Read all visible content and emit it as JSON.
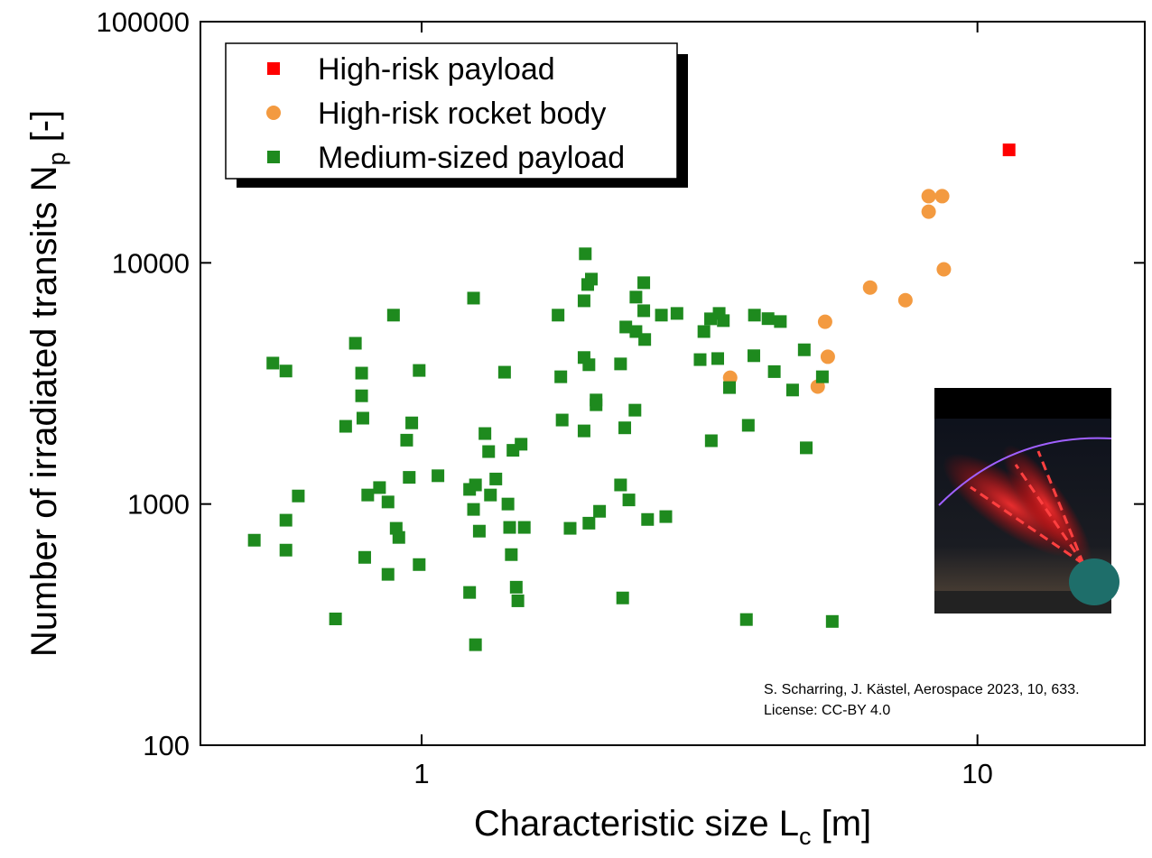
{
  "chart_data": {
    "type": "scatter",
    "xlabel": {
      "text": "Characteristic size L",
      "sub": "c",
      "suffix": "[m]"
    },
    "ylabel": {
      "text": "Number of irradiated transits N",
      "sub": "p",
      "suffix": "[-]"
    },
    "xscale": "log",
    "yscale": "log",
    "xlim": [
      0.4,
      20
    ],
    "ylim": [
      100,
      100000
    ],
    "xticks": [
      1,
      10
    ],
    "yticks": [
      100,
      1000,
      10000,
      100000
    ],
    "legend": "top-left",
    "annotations": [
      "S. Scharring, J. Kästel, Aerospace 2023, 10, 633.",
      "License: CC-BY 4.0"
    ],
    "series": [
      {
        "name": "High-risk payload",
        "color": "#ff0000",
        "marker": "square",
        "x": [
          11.4
        ],
        "values": [
          29400
        ]
      },
      {
        "name": "High-risk rocket body",
        "color": "#f39a40",
        "marker": "circle",
        "x": [
          8.17,
          8.64,
          8.17,
          8.7,
          6.41,
          7.42,
          5.32,
          5.38,
          3.59,
          5.16
        ],
        "values": [
          18900,
          18900,
          16300,
          9400,
          7900,
          7000,
          5700,
          4080,
          3340,
          3070
        ]
      },
      {
        "name": "Medium-sized payload",
        "color": "#1e8a1e",
        "marker": "square",
        "x": [
          0.5,
          0.54,
          0.57,
          0.57,
          0.57,
          0.6,
          0.7,
          0.73,
          0.76,
          0.78,
          0.78,
          0.784,
          0.79,
          0.8,
          0.84,
          0.87,
          0.87,
          0.89,
          0.9,
          0.91,
          0.94,
          0.96,
          0.95,
          0.99,
          0.99,
          1.07,
          1.22,
          1.24,
          1.22,
          1.25,
          1.24,
          1.25,
          1.27,
          1.3,
          1.32,
          1.33,
          1.36,
          1.41,
          1.43,
          1.44,
          1.45,
          1.46,
          1.48,
          1.49,
          1.51,
          1.53,
          1.76,
          1.78,
          1.79,
          1.85,
          1.97,
          1.96,
          1.99,
          2.02,
          1.96,
          2.0,
          1.96,
          2.0,
          2.06,
          2.06,
          2.09,
          2.28,
          2.28,
          2.32,
          2.3,
          2.33,
          2.36,
          2.43,
          2.42,
          2.43,
          2.51,
          2.51,
          2.52,
          2.55,
          2.7,
          2.75,
          2.88,
          3.17,
          3.22,
          3.32,
          3.31,
          3.41,
          3.43,
          3.49,
          3.58,
          3.84,
          3.87,
          3.96,
          3.97,
          4.2,
          4.31,
          4.42,
          4.65,
          4.88,
          4.92,
          5.26,
          5.48
        ],
        "values": [
          708,
          3840,
          3560,
          857,
          644,
          1080,
          334,
          2100,
          4640,
          3490,
          2810,
          2270,
          601,
          1090,
          1170,
          1020,
          511,
          6070,
          793,
          727,
          1840,
          2170,
          1290,
          3580,
          561,
          1310,
          1150,
          7140,
          430,
          261,
          950,
          1200,
          772,
          1960,
          1650,
          1090,
          1270,
          3520,
          1000,
          800,
          617,
          1670,
          452,
          397,
          1770,
          800,
          6070,
          3370,
          2230,
          793,
          10900,
          6960,
          8130,
          8560,
          4050,
          3780,
          2010,
          833,
          2700,
          2580,
          933,
          3810,
          1200,
          2070,
          408,
          5420,
          1040,
          7210,
          2450,
          5190,
          6330,
          8270,
          4810,
          863,
          6070,
          887,
          6170,
          3970,
          5190,
          1830,
          5860,
          4010,
          6170,
          5760,
          3040,
          332,
          2120,
          4120,
          6070,
          5870,
          3540,
          5710,
          2970,
          4360,
          1710,
          3370,
          326
        ]
      }
    ]
  }
}
